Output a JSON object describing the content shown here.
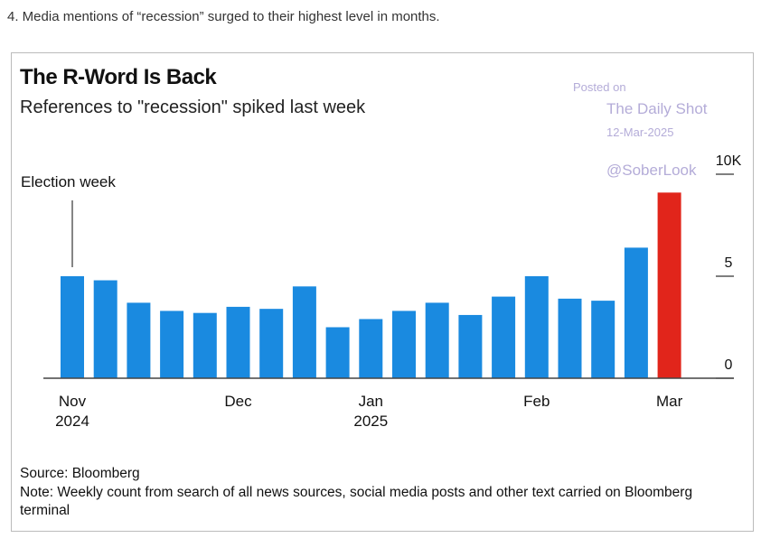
{
  "caption": "4. Media mentions of “recession” surged to their highest level in months.",
  "chart_data": {
    "type": "bar",
    "title": "The R-Word Is Back",
    "subtitle": "References to \"recession\" spiked last week",
    "watermark": [
      "Posted on",
      "The Daily Shot",
      "12-Mar-2025",
      "@SoberLook"
    ],
    "annotation": "Election week",
    "categories": [
      "Nov 2024",
      null,
      null,
      null,
      null,
      "Dec",
      null,
      null,
      null,
      "Jan 2025",
      null,
      null,
      null,
      null,
      "Feb",
      null,
      null,
      null,
      "Mar"
    ],
    "values": [
      5.0,
      4.8,
      3.7,
      3.3,
      3.2,
      3.5,
      3.4,
      4.5,
      2.5,
      2.9,
      3.3,
      3.7,
      3.1,
      4.0,
      5.0,
      3.9,
      3.8,
      6.4,
      9.1
    ],
    "colors": [
      "#1a8ae0",
      "#1a8ae0",
      "#1a8ae0",
      "#1a8ae0",
      "#1a8ae0",
      "#1a8ae0",
      "#1a8ae0",
      "#1a8ae0",
      "#1a8ae0",
      "#1a8ae0",
      "#1a8ae0",
      "#1a8ae0",
      "#1a8ae0",
      "#1a8ae0",
      "#1a8ae0",
      "#1a8ae0",
      "#1a8ae0",
      "#1a8ae0",
      "#e1251b"
    ],
    "ylim": [
      0,
      10
    ],
    "yticks": [
      0,
      5,
      {
        "value": 10,
        "label": "10K"
      }
    ],
    "grid": false,
    "source": "Source: Bloomberg",
    "note": "Note: Weekly count from search of all news sources, social media posts and other text carried on Bloomberg terminal"
  }
}
